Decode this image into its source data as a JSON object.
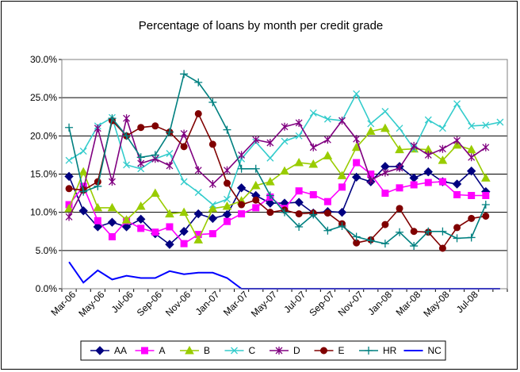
{
  "chart_data": {
    "type": "line",
    "title": "Percentage of loans by month per credit grade",
    "ylim": [
      0,
      30
    ],
    "y_ticks": [
      "0.0%",
      "5.0%",
      "10.0%",
      "15.0%",
      "20.0%",
      "25.0%",
      "30.0%"
    ],
    "x_tick_labels": [
      "Mar-06",
      "May-06",
      "Jul-06",
      "Sep-06",
      "Nov-06",
      "Jan-07",
      "Mar-07",
      "May-07",
      "Jul-07",
      "Sep-07",
      "Nov-07",
      "Jan-08",
      "Mar-08",
      "May-08",
      "Jul-08"
    ],
    "x": [
      "Mar-06",
      "Apr-06",
      "May-06",
      "Jun-06",
      "Jul-06",
      "Aug-06",
      "Sep-06",
      "Oct-06",
      "Nov-06",
      "Dec-06",
      "Jan-07",
      "Feb-07",
      "Mar-07",
      "Apr-07",
      "May-07",
      "Jun-07",
      "Jul-07",
      "Aug-07",
      "Sep-07",
      "Oct-07",
      "Nov-07",
      "Dec-07",
      "Jan-08",
      "Feb-08",
      "Mar-08",
      "Apr-08",
      "May-08",
      "Jun-08",
      "Jul-08",
      "Aug-08",
      "Sep-08"
    ],
    "grid": "horizontal",
    "legend_position": "bottom",
    "series": [
      {
        "name": "AA",
        "color": "#000080",
        "marker": "diamond",
        "values": [
          14.7,
          10.2,
          8.1,
          8.7,
          8.1,
          9.1,
          7.2,
          5.8,
          7.5,
          9.8,
          9.2,
          9.7,
          13.2,
          12.2,
          11.2,
          11.2,
          11.3,
          9.9,
          10.1,
          10.0,
          14.6,
          14.0,
          16.0,
          16.0,
          14.5,
          15.3,
          14.0,
          13.7,
          15.4,
          12.7,
          null
        ]
      },
      {
        "name": "A",
        "color": "#ff00ff",
        "marker": "square",
        "values": [
          11.0,
          13.4,
          8.9,
          6.8,
          8.9,
          7.9,
          7.4,
          8.1,
          5.9,
          7.1,
          7.2,
          8.8,
          9.8,
          10.6,
          12.0,
          10.5,
          12.8,
          12.3,
          11.4,
          13.3,
          16.5,
          15.0,
          12.5,
          13.2,
          13.6,
          13.9,
          14.0,
          12.3,
          12.2,
          12.2,
          null
        ]
      },
      {
        "name": "B",
        "color": "#99cc00",
        "marker": "triangle",
        "values": [
          10.5,
          15.3,
          10.6,
          10.6,
          9.0,
          10.8,
          12.5,
          9.8,
          10.0,
          6.4,
          10.5,
          10.8,
          11.5,
          13.5,
          14.0,
          15.4,
          16.5,
          16.3,
          17.4,
          14.8,
          18.5,
          20.6,
          21.0,
          18.2,
          18.3,
          18.2,
          16.8,
          18.8,
          18.2,
          14.5,
          null
        ]
      },
      {
        "name": "C",
        "color": "#33cccc",
        "marker": "x",
        "values": [
          16.8,
          18.0,
          21.3,
          22.4,
          16.2,
          15.7,
          17.0,
          17.7,
          14.0,
          12.6,
          11.0,
          11.7,
          17.0,
          19.2,
          17.1,
          19.3,
          20.0,
          23.0,
          22.2,
          22.0,
          25.5,
          21.6,
          23.2,
          21.0,
          18.3,
          22.1,
          21.0,
          24.2,
          21.3,
          21.4,
          21.8
        ]
      },
      {
        "name": "D",
        "color": "#800080",
        "marker": "star",
        "values": [
          9.4,
          13.0,
          21.0,
          14.0,
          22.3,
          16.4,
          17.0,
          16.1,
          20.3,
          15.5,
          13.7,
          15.5,
          17.5,
          19.5,
          19.1,
          21.2,
          21.7,
          18.5,
          19.5,
          22.0,
          19.6,
          14.2,
          15.2,
          15.8,
          18.7,
          17.5,
          18.3,
          19.4,
          17.2,
          18.5,
          null
        ]
      },
      {
        "name": "E",
        "color": "#800000",
        "marker": "circle",
        "values": [
          13.1,
          12.9,
          14.0,
          22.0,
          20.0,
          21.1,
          21.3,
          20.5,
          18.6,
          22.9,
          18.9,
          13.8,
          11.0,
          11.6,
          10.0,
          10.3,
          9.8,
          9.9,
          9.9,
          8.5,
          6.0,
          6.4,
          8.4,
          10.5,
          7.5,
          7.4,
          5.3,
          8.0,
          9.2,
          9.5,
          null
        ]
      },
      {
        "name": "HR",
        "color": "#008080",
        "marker": "plus",
        "values": [
          21.1,
          12.7,
          13.4,
          22.3,
          20.0,
          17.2,
          17.5,
          20.5,
          28.1,
          27.0,
          24.4,
          20.8,
          15.7,
          15.7,
          12.2,
          10.0,
          8.1,
          9.7,
          7.6,
          8.2,
          6.8,
          6.3,
          5.9,
          7.4,
          5.6,
          7.5,
          7.5,
          6.6,
          6.7,
          11.0,
          null
        ]
      },
      {
        "name": "NC",
        "color": "#0000ff",
        "marker": "none",
        "values": [
          3.5,
          0.8,
          2.4,
          1.2,
          1.7,
          1.4,
          1.4,
          2.3,
          1.9,
          2.1,
          2.1,
          1.4,
          0,
          0,
          0,
          0,
          0,
          0,
          0,
          0,
          0,
          0,
          0,
          0,
          0,
          0,
          0,
          0,
          0,
          0,
          0
        ]
      }
    ]
  }
}
